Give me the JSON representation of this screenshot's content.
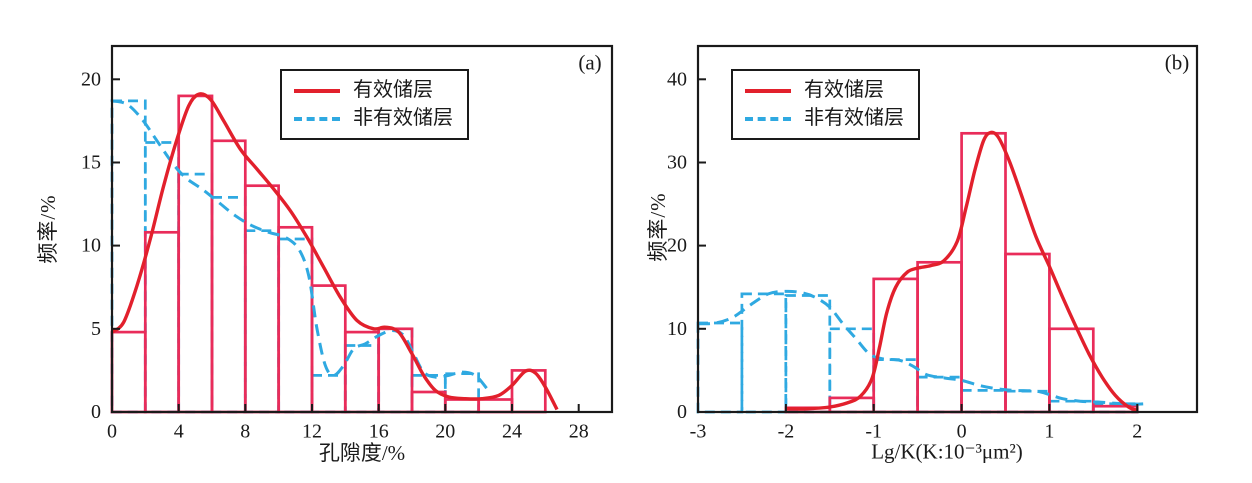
{
  "figure": {
    "background": "#ffffff"
  },
  "colors": {
    "effective_line": "#e2202c",
    "effective_bar": "#e92c5a",
    "non_effective": "#2fa9e1",
    "axis": "#1a1a1a"
  },
  "legend": {
    "effective_label": "有效储层",
    "non_effective_label": "非有效储层"
  },
  "chart_data": [
    {
      "type": "histogram+density-line",
      "panel_label": "(a)",
      "title": "",
      "xlabel": "孔隙度/%",
      "ylabel": "频率/%",
      "xlim": [
        0,
        30
      ],
      "ylim": [
        0,
        22
      ],
      "xticks": [
        0,
        4,
        8,
        12,
        16,
        20,
        24,
        28
      ],
      "yticks": [
        0,
        5,
        10,
        15,
        20
      ],
      "grid": false,
      "legend_position": "top-center",
      "series": [
        {
          "name": "有效储层",
          "role": "effective",
          "line_style": "solid",
          "bar_color": "#e92c5a",
          "line_color": "#e2202c",
          "bins_start": 0,
          "bin_width": 2,
          "bar_values": [
            4.8,
            10.8,
            19.0,
            16.3,
            13.6,
            11.1,
            7.6,
            4.8,
            5.0,
            1.2,
            0.75,
            0.75,
            2.5
          ],
          "curve": [
            [
              0,
              4.8
            ],
            [
              0.7,
              5.4
            ],
            [
              1.5,
              7.6
            ],
            [
              2.3,
              10.4
            ],
            [
              3.1,
              13.6
            ],
            [
              3.9,
              16.4
            ],
            [
              4.6,
              18.4
            ],
            [
              5.2,
              19.1
            ],
            [
              5.9,
              18.8
            ],
            [
              6.7,
              17.5
            ],
            [
              7.7,
              15.8
            ],
            [
              8.7,
              14.6
            ],
            [
              9.7,
              13.4
            ],
            [
              10.7,
              12.1
            ],
            [
              11.7,
              10.5
            ],
            [
              12.7,
              8.7
            ],
            [
              13.7,
              6.9
            ],
            [
              14.7,
              5.5
            ],
            [
              15.7,
              5.0
            ],
            [
              16.4,
              5.1
            ],
            [
              17.2,
              4.8
            ],
            [
              18,
              3.5
            ],
            [
              18.7,
              2.2
            ],
            [
              19.4,
              1.3
            ],
            [
              20.2,
              0.9
            ],
            [
              21.2,
              0.8
            ],
            [
              22.2,
              0.8
            ],
            [
              23.2,
              1.0
            ],
            [
              24,
              1.6
            ],
            [
              24.8,
              2.45
            ],
            [
              25.4,
              2.35
            ],
            [
              26,
              1.5
            ],
            [
              26.7,
              0.15
            ]
          ]
        },
        {
          "name": "非有效储层",
          "role": "non_effective",
          "line_style": "dashed",
          "bar_color": "#2fa9e1",
          "line_color": "#2fa9e1",
          "bins_start": 0,
          "bin_width": 2,
          "bar_values": [
            18.7,
            16.2,
            14.3,
            12.9,
            10.9,
            10.4,
            2.2,
            4.0,
            5.0,
            2.2,
            2.3
          ],
          "curve": [
            [
              0,
              18.7
            ],
            [
              0.9,
              18.5
            ],
            [
              1.8,
              17.6
            ],
            [
              2.7,
              16.3
            ],
            [
              3.6,
              15.0
            ],
            [
              4.4,
              14.1
            ],
            [
              5.4,
              13.4
            ],
            [
              6.4,
              12.6
            ],
            [
              7.4,
              11.8
            ],
            [
              8.4,
              11.2
            ],
            [
              9.4,
              10.8
            ],
            [
              10.4,
              10.5
            ],
            [
              11.2,
              9.8
            ],
            [
              11.8,
              8.2
            ],
            [
              12.3,
              5.0
            ],
            [
              12.8,
              2.8
            ],
            [
              13.3,
              2.2
            ],
            [
              13.9,
              2.8
            ],
            [
              14.5,
              3.8
            ],
            [
              15.2,
              4.1
            ],
            [
              16,
              4.6
            ],
            [
              16.8,
              4.9
            ],
            [
              17.5,
              4.6
            ],
            [
              18.1,
              3.5
            ],
            [
              18.7,
              2.4
            ],
            [
              19.4,
              2.1
            ],
            [
              20.2,
              2.2
            ],
            [
              21,
              2.4
            ],
            [
              21.8,
              2.2
            ],
            [
              22.5,
              1.4
            ]
          ]
        }
      ]
    },
    {
      "type": "histogram+density-line",
      "panel_label": "(b)",
      "title": "",
      "xlabel": "Lg/K(K:10⁻³μm²)",
      "ylabel": "频率/%",
      "xlim": [
        -3,
        2.68
      ],
      "ylim": [
        0,
        44
      ],
      "xticks": [
        -3,
        -2,
        -1,
        0,
        1,
        2
      ],
      "yticks": [
        0,
        10,
        20,
        30,
        40
      ],
      "grid": false,
      "legend_position": "top-left",
      "series": [
        {
          "name": "有效储层",
          "role": "effective",
          "line_style": "solid",
          "bar_color": "#e92c5a",
          "line_color": "#e2202c",
          "bins_start": -2,
          "bin_width": 0.5,
          "bar_values": [
            0.5,
            1.7,
            16.0,
            18.0,
            33.5,
            19.0,
            10.0,
            0.7
          ],
          "curve": [
            [
              -2,
              0.4
            ],
            [
              -1.75,
              0.4
            ],
            [
              -1.5,
              0.6
            ],
            [
              -1.3,
              1.1
            ],
            [
              -1.15,
              1.9
            ],
            [
              -1.02,
              4.0
            ],
            [
              -0.93,
              8.0
            ],
            [
              -0.85,
              12.0
            ],
            [
              -0.75,
              15.0
            ],
            [
              -0.62,
              16.8
            ],
            [
              -0.5,
              17.3
            ],
            [
              -0.35,
              17.6
            ],
            [
              -0.2,
              18.2
            ],
            [
              -0.05,
              20.5
            ],
            [
              0.05,
              24.5
            ],
            [
              0.15,
              29.0
            ],
            [
              0.25,
              32.6
            ],
            [
              0.33,
              33.6
            ],
            [
              0.42,
              33.0
            ],
            [
              0.55,
              30.0
            ],
            [
              0.7,
              25.5
            ],
            [
              0.85,
              21.0
            ],
            [
              1.0,
              17.5
            ],
            [
              1.15,
              13.8
            ],
            [
              1.3,
              10.3
            ],
            [
              1.45,
              7.0
            ],
            [
              1.6,
              4.2
            ],
            [
              1.75,
              2.0
            ],
            [
              1.9,
              0.6
            ],
            [
              2.0,
              0.2
            ]
          ]
        },
        {
          "name": "非有效储层",
          "role": "non_effective",
          "line_style": "dashed",
          "bar_color": "#2fa9e1",
          "line_color": "#2fa9e1",
          "bins_start": -3,
          "bin_width": 0.5,
          "bar_values": [
            10.7,
            14.2,
            14.0,
            10.0,
            6.3,
            4.2,
            2.6,
            2.5,
            1.3,
            1.0
          ],
          "curve": [
            [
              -3,
              10.6
            ],
            [
              -2.8,
              10.7
            ],
            [
              -2.6,
              11.4
            ],
            [
              -2.4,
              12.9
            ],
            [
              -2.2,
              14.2
            ],
            [
              -2.0,
              14.5
            ],
            [
              -1.8,
              14.3
            ],
            [
              -1.65,
              13.7
            ],
            [
              -1.5,
              12.6
            ],
            [
              -1.35,
              10.6
            ],
            [
              -1.2,
              8.8
            ],
            [
              -1.05,
              7.0
            ],
            [
              -0.9,
              6.4
            ],
            [
              -0.7,
              6.2
            ],
            [
              -0.55,
              5.5
            ],
            [
              -0.4,
              4.5
            ],
            [
              -0.2,
              4.1
            ],
            [
              0,
              3.8
            ],
            [
              0.2,
              3.2
            ],
            [
              0.4,
              2.8
            ],
            [
              0.6,
              2.6
            ],
            [
              0.85,
              2.5
            ],
            [
              1.0,
              2.1
            ],
            [
              1.15,
              1.6
            ],
            [
              1.35,
              1.3
            ],
            [
              1.55,
              1.2
            ],
            [
              1.75,
              1.05
            ],
            [
              1.95,
              0.95
            ],
            [
              2.1,
              1.0
            ]
          ]
        }
      ]
    }
  ]
}
